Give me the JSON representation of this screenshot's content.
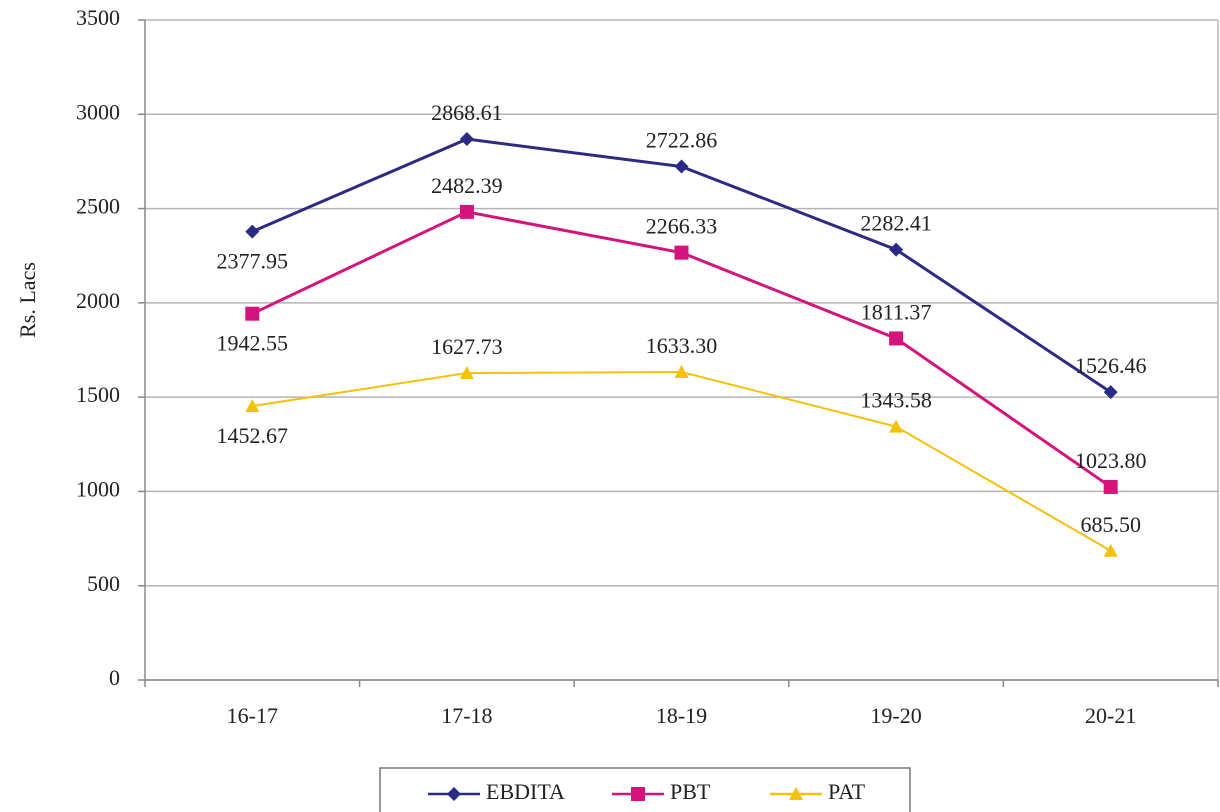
{
  "chart_data": {
    "type": "line",
    "y_axis_label": "Rs. Lacs",
    "categories": [
      "16-17",
      "17-18",
      "18-19",
      "19-20",
      "20-21"
    ],
    "series": [
      {
        "name": "EBDITA",
        "color": "#2b2b86",
        "marker": "diamond",
        "values": [
          2377.95,
          2868.61,
          2722.86,
          2282.41,
          1526.46
        ],
        "value_labels": [
          "2377.95",
          "2868.61",
          "2722.86",
          "2282.41",
          "1526.46"
        ]
      },
      {
        "name": "PBT",
        "color": "#d4137d",
        "marker": "square",
        "values": [
          1942.55,
          2482.39,
          2266.33,
          1811.37,
          1023.8
        ],
        "value_labels": [
          "1942.55",
          "2482.39",
          "2266.33",
          "1811.37",
          "1023.80"
        ]
      },
      {
        "name": "PAT",
        "color": "#f4c20d",
        "marker": "triangle",
        "values": [
          1452.67,
          1627.73,
          1633.3,
          1343.58,
          685.5
        ],
        "value_labels": [
          "1452.67",
          "1627.73",
          "1633.30",
          "1343.58",
          "685.50"
        ]
      }
    ],
    "ylim": [
      0,
      3500
    ],
    "yticks": [
      0,
      500,
      1000,
      1500,
      2000,
      2500,
      3000,
      3500
    ],
    "grid": true,
    "legend": "bottom"
  }
}
